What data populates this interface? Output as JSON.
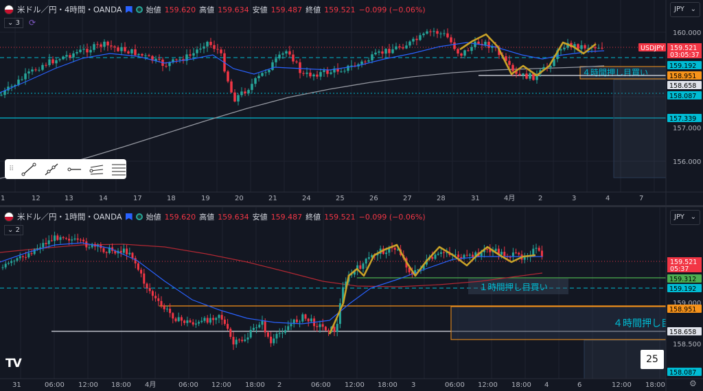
{
  "colors": {
    "bg": "#131722",
    "up": "#26a69a",
    "down": "#f23645",
    "ma_fast": "#2962ff",
    "ma_slow": "#9598a1",
    "ma_red": "#b22833",
    "zigzag": "#c9a227",
    "cyan": "#00bcd4",
    "orange": "#f7931a",
    "green": "#4caf50",
    "grid": "#1f2330"
  },
  "pane1": {
    "symbol": "米ドル／円・4時間・OANDA",
    "open_label": "始値",
    "open": "159.620",
    "high_label": "高値",
    "high": "159.634",
    "low_label": "安値",
    "low": "159.487",
    "close_label": "終値",
    "close": "159.521",
    "change": "−0.099 (−0.06%)",
    "indicator_count": "3",
    "currency": "JPY",
    "price_axis": [
      "160.000",
      "157.000",
      "156.000"
    ],
    "badges": {
      "symbol_tag": "USDJPY",
      "last": "159.521",
      "countdown": "03:05:37",
      "l1": "159.192",
      "l2": "158.951",
      "l3": "158.658",
      "l4": "158.087",
      "l5": "157.339"
    },
    "zone_label": "４時間押し目買い",
    "time_axis": [
      "1",
      "12",
      "13",
      "14",
      "17",
      "18",
      "19",
      "20",
      "21",
      "24",
      "25",
      "26",
      "27",
      "28",
      "31",
      "4月",
      "2",
      "3",
      "4",
      "7"
    ]
  },
  "pane2": {
    "symbol": "米ドル／円・1時間・OANDA",
    "open_label": "始値",
    "open": "159.620",
    "high_label": "高値",
    "high": "159.634",
    "low_label": "安値",
    "low": "159.487",
    "close_label": "終値",
    "close": "159.521",
    "change": "−0.099 (−0.06%)",
    "indicator_count": "2",
    "currency": "JPY",
    "price_axis": [
      "159.000",
      "158.500"
    ],
    "badges": {
      "last": "159.521",
      "countdown": "05:37",
      "l0": "159.312",
      "l1": "159.192",
      "l2": "158.951",
      "l3": "158.658",
      "l4": "158.087"
    },
    "zone1_label": "１時間押し目買い",
    "zone2_label": "４時間押し目",
    "time_axis": [
      "31",
      "06:00",
      "12:00",
      "18:00",
      "4月",
      "06:00",
      "12:00",
      "18:00",
      "2",
      "06:00",
      "12:00",
      "18:00",
      "3",
      "06:00",
      "12:00",
      "18:00",
      "4",
      "6",
      "12:00",
      "18:00"
    ]
  },
  "bottom_counter": "25",
  "logo": "TV"
}
